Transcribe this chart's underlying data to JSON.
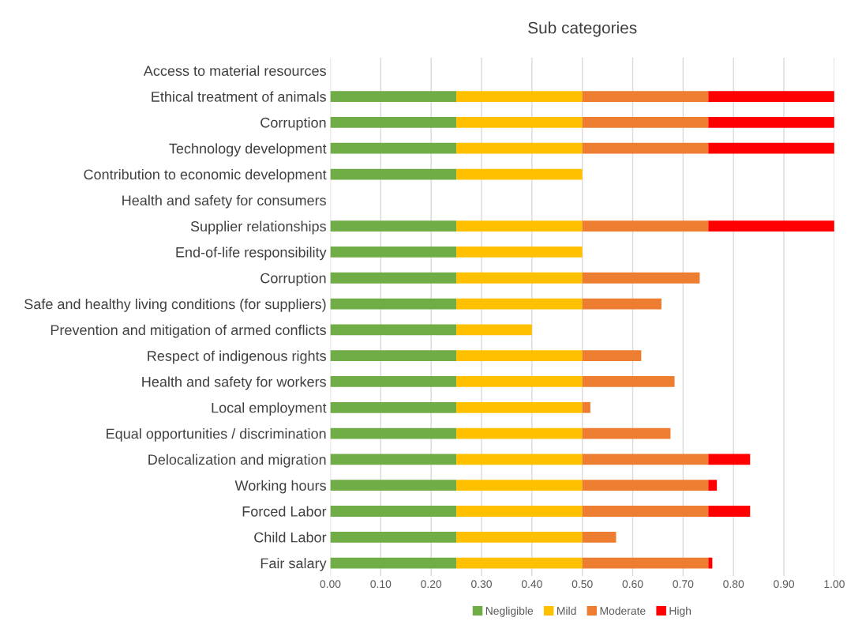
{
  "chart_data": {
    "type": "bar",
    "orientation": "horizontal",
    "stacked": true,
    "title": "Sub categories",
    "categories": [
      "Access to material resources",
      "Ethical treatment of animals",
      "Corruption",
      "Technology development",
      "Contribution to economic development",
      "Health and safety for consumers",
      "Supplier relationships",
      "End-of-life responsibility",
      "Corruption",
      "Safe and healthy living conditions (for suppliers)",
      "Prevention and mitigation of armed conflicts",
      "Respect of indigenous rights",
      "Health and safety for workers",
      "Local employment",
      "Equal opportunities / discrimination",
      "Delocalization and migration",
      "Working hours",
      "Forced Labor",
      "Child Labor",
      "Fair salary"
    ],
    "series": [
      {
        "name": "Negligible",
        "color": "#70ad47",
        "values": [
          null,
          0.25,
          0.25,
          0.25,
          0.25,
          null,
          0.25,
          0.25,
          0.25,
          0.25,
          0.25,
          0.25,
          0.25,
          0.25,
          0.25,
          0.25,
          0.25,
          0.25,
          0.25,
          0.25
        ]
      },
      {
        "name": "Mild",
        "color": "#ffc000",
        "values": [
          null,
          0.25,
          0.25,
          0.25,
          0.25,
          null,
          0.25,
          0.25,
          0.25,
          0.25,
          0.15,
          0.25,
          0.25,
          0.25,
          0.25,
          0.25,
          0.25,
          0.25,
          0.25,
          0.25
        ]
      },
      {
        "name": "Moderate",
        "color": "#ed7d31",
        "values": [
          null,
          0.25,
          0.25,
          0.25,
          null,
          null,
          0.25,
          null,
          0.233,
          0.157,
          null,
          0.117,
          0.183,
          0.016,
          0.175,
          0.25,
          0.25,
          0.25,
          0.067,
          0.25
        ]
      },
      {
        "name": "High",
        "color": "#ff0000",
        "values": [
          null,
          0.25,
          0.25,
          0.25,
          null,
          null,
          0.25,
          null,
          null,
          null,
          null,
          null,
          null,
          null,
          null,
          0.083,
          0.017,
          0.083,
          null,
          0.008
        ]
      }
    ],
    "xlim": [
      0,
      1
    ],
    "xticks": [
      {
        "value": 0,
        "label": "0.00"
      },
      {
        "value": 0.1,
        "label": "0.10"
      },
      {
        "value": 0.2,
        "label": "0.20"
      },
      {
        "value": 0.3,
        "label": "0.30"
      },
      {
        "value": 0.4,
        "label": "0.40"
      },
      {
        "value": 0.5,
        "label": "0.50"
      },
      {
        "value": 0.6,
        "label": "0.60"
      },
      {
        "value": 0.7,
        "label": "0.70"
      },
      {
        "value": 0.8,
        "label": "0.80"
      },
      {
        "value": 0.9,
        "label": "0.90"
      },
      {
        "value": 1,
        "label": "1.00"
      }
    ],
    "grid": "x",
    "legend": "bottom"
  }
}
